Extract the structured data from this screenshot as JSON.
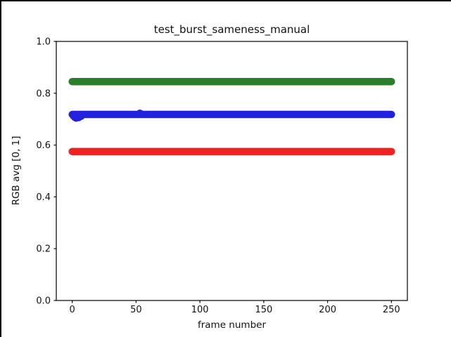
{
  "figure": {
    "background": "#ffffff",
    "frame_border_color": "#000000",
    "spine_color": "#000000",
    "text_color": "#111111"
  },
  "chart_data": {
    "type": "scatter",
    "title": "test_burst_sameness_manual",
    "xlabel": "frame number",
    "ylabel": "RGB avg [0, 1]",
    "xlim": [
      -12.5,
      262.5
    ],
    "ylim": [
      0,
      1
    ],
    "xticks": [
      0,
      50,
      100,
      150,
      200,
      250
    ],
    "yticks": [
      0.0,
      0.2,
      0.4,
      0.6,
      0.8,
      1.0
    ],
    "grid": false,
    "legend": "none",
    "marker_diameter_px": 10.5,
    "series": [
      {
        "name": "green",
        "color": "#2a7e2a",
        "x_start": 0,
        "x_end": 250,
        "n_points": 251,
        "value": 0.845,
        "anomalies": []
      },
      {
        "name": "blue",
        "color": "#2222dd",
        "x_start": 0,
        "x_end": 250,
        "n_points": 251,
        "value": 0.718,
        "anomalies": [
          {
            "x": 1,
            "y": 0.712
          },
          {
            "x": 2,
            "y": 0.707
          },
          {
            "x": 3,
            "y": 0.704
          },
          {
            "x": 5,
            "y": 0.706
          },
          {
            "x": 7,
            "y": 0.711
          },
          {
            "x": 53,
            "y": 0.723
          }
        ]
      },
      {
        "name": "red",
        "color": "#ee2222",
        "x_start": 0,
        "x_end": 250,
        "n_points": 251,
        "value": 0.575,
        "anomalies": []
      }
    ]
  }
}
